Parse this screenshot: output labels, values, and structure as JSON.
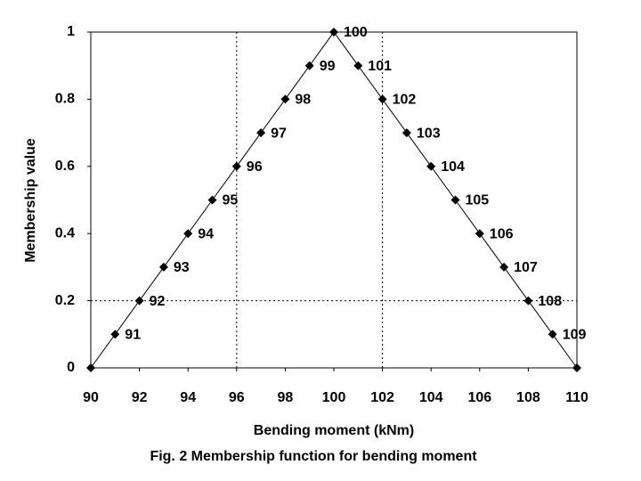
{
  "chart_data": {
    "type": "line",
    "title": "Fig. 2 Membership function for bending moment",
    "xlabel": "Bending moment (kNm)",
    "ylabel": "Membership value",
    "x": [
      90,
      91,
      92,
      93,
      94,
      95,
      96,
      97,
      98,
      99,
      100,
      101,
      102,
      103,
      104,
      105,
      106,
      107,
      108,
      109,
      110
    ],
    "values": [
      0,
      0.1,
      0.2,
      0.3,
      0.4,
      0.5,
      0.6,
      0.7,
      0.8,
      0.9,
      1,
      0.9,
      0.8,
      0.7,
      0.6,
      0.5,
      0.4,
      0.3,
      0.2,
      0.1,
      0
    ],
    "color": "#000000",
    "xlim": [
      90,
      110
    ],
    "xticks": [
      90,
      92,
      94,
      96,
      98,
      100,
      102,
      104,
      106,
      108,
      110
    ],
    "ylim": [
      0,
      1
    ],
    "yticks": [
      0,
      0.2,
      0.4,
      0.6,
      0.8,
      1
    ],
    "reference_lines": {
      "x": [
        96,
        102
      ],
      "y": [
        0.2
      ]
    }
  }
}
